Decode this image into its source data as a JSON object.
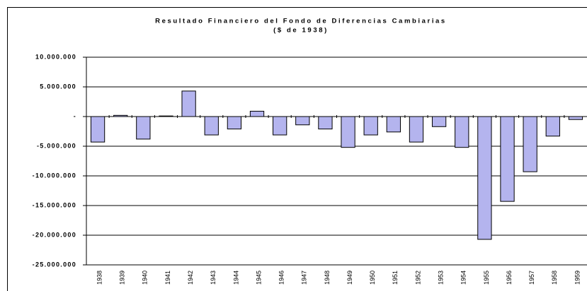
{
  "chart_data": {
    "type": "bar",
    "title": "Resultado Financiero del Fondo de Diferencias Cambiarias",
    "subtitle": "($ de 1938)",
    "categories": [
      "1938",
      "1939",
      "1940",
      "1941",
      "1942",
      "1943",
      "1944",
      "1945",
      "1946",
      "1947",
      "1948",
      "1949",
      "1950",
      "1951",
      "1952",
      "1953",
      "1954",
      "1955",
      "1956",
      "1957",
      "1958",
      "1959"
    ],
    "values": [
      -4300000,
      200000,
      -3800000,
      100000,
      4300000,
      -3100000,
      -2100000,
      900000,
      -3100000,
      -1400000,
      -2100000,
      -5200000,
      -3100000,
      -2600000,
      -4300000,
      -1700000,
      -5200000,
      -20700000,
      -14300000,
      -9300000,
      -3300000,
      -500000
    ],
    "color": "#b4b4ee",
    "ylim": [
      -25000000,
      10000000
    ],
    "yticks": [
      {
        "value": 10000000,
        "label": "10.000.000"
      },
      {
        "value": 5000000,
        "label": "5.000.000"
      },
      {
        "value": 0,
        "label": "-"
      },
      {
        "value": -5000000,
        "label": "-5.000.000"
      },
      {
        "value": -10000000,
        "label": "-10.000.000"
      },
      {
        "value": -15000000,
        "label": "-15.000.000"
      },
      {
        "value": -20000000,
        "label": "-20.000.000"
      },
      {
        "value": -25000000,
        "label": "-25.000.000"
      }
    ],
    "grid": true
  }
}
